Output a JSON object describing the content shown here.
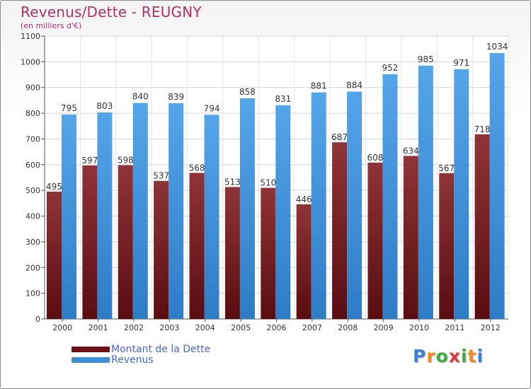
{
  "chart_data": {
    "type": "bar",
    "title": "Revenus/Dette - REUGNY",
    "subtitle": "(en milliers d'€)",
    "categories": [
      "2000",
      "2001",
      "2002",
      "2003",
      "2004",
      "2005",
      "2006",
      "2007",
      "2008",
      "2009",
      "2010",
      "2011",
      "2012"
    ],
    "series": [
      {
        "name": "Montant de la Dette",
        "color": "#7a1a1f",
        "values": [
          495,
          597,
          598,
          537,
          568,
          513,
          510,
          446,
          687,
          608,
          634,
          567,
          718
        ]
      },
      {
        "name": "Revenus",
        "color": "#3d8fd8",
        "values": [
          795,
          803,
          840,
          839,
          794,
          858,
          831,
          881,
          884,
          952,
          985,
          971,
          1034
        ]
      }
    ],
    "ylim": [
      0,
      1100
    ],
    "yticks": [
      0,
      100,
      200,
      300,
      400,
      500,
      600,
      700,
      800,
      900,
      1000,
      1100
    ],
    "grid": true,
    "legend": "bottom-left"
  },
  "logo": {
    "letters": [
      "P",
      "r",
      "o",
      "x",
      "i",
      "t",
      "i"
    ],
    "colors": [
      "#3f7fd6",
      "#f08a1c",
      "#3fae3f",
      "#d63f3f",
      "#3fae3f",
      "#f08a1c",
      "#3f7fd6"
    ]
  }
}
